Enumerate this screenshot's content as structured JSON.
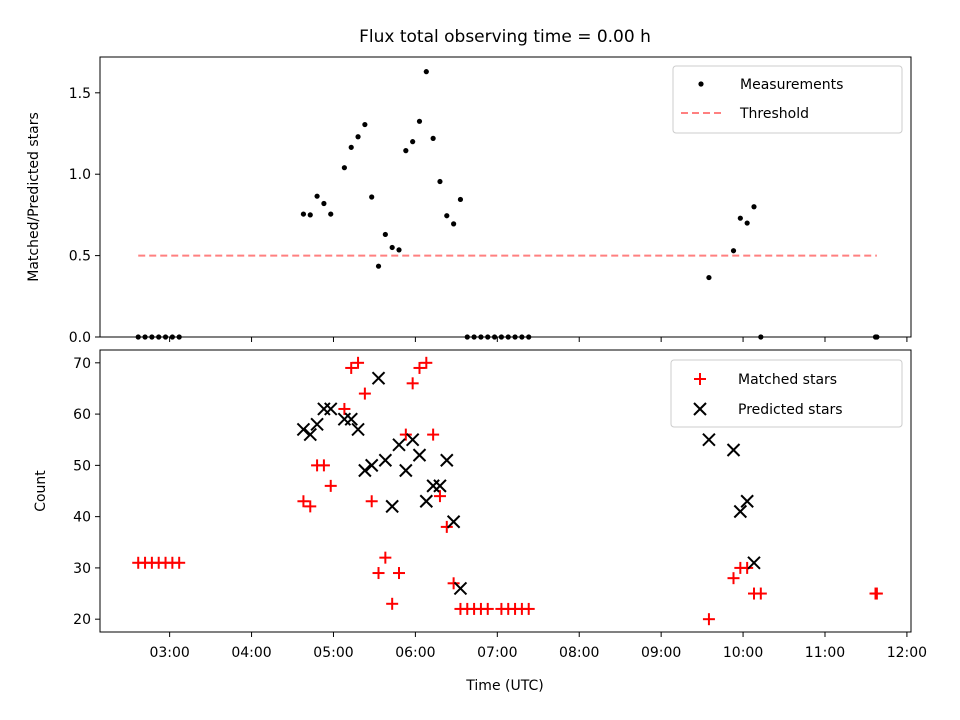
{
  "chart_data": [
    {
      "type": "scatter",
      "title": "Flux total observing time = 0.00 h",
      "ylabel": "Matched/Predicted stars",
      "xlabel": "",
      "xlim": [
        "02:09",
        "12:03"
      ],
      "ylim": [
        0,
        1.72
      ],
      "yticks": [
        0,
        0.5,
        1.0,
        1.5
      ],
      "ytick_labels": [
        "0.0",
        "0.5",
        "1.0",
        "1.5"
      ],
      "legend_position": "upper-right",
      "series": [
        {
          "name": "Measurements",
          "kind": "points",
          "color": "#000000",
          "points": [
            [
              "02:37",
              0
            ],
            [
              "02:42",
              0
            ],
            [
              "02:47",
              0
            ],
            [
              "02:52",
              0
            ],
            [
              "02:57",
              0
            ],
            [
              "03:02",
              0
            ],
            [
              "03:07",
              0
            ],
            [
              "04:38",
              0.755
            ],
            [
              "04:43",
              0.75
            ],
            [
              "04:48",
              0.865
            ],
            [
              "04:53",
              0.82
            ],
            [
              "04:58",
              0.755
            ],
            [
              "05:08",
              1.04
            ],
            [
              "05:13",
              1.165
            ],
            [
              "05:18",
              1.23
            ],
            [
              "05:23",
              1.305
            ],
            [
              "05:28",
              0.86
            ],
            [
              "05:33",
              0.435
            ],
            [
              "05:38",
              0.63
            ],
            [
              "05:43",
              0.55
            ],
            [
              "05:48",
              0.535
            ],
            [
              "05:53",
              1.145
            ],
            [
              "05:58",
              1.2
            ],
            [
              "06:03",
              1.325
            ],
            [
              "06:08",
              1.63
            ],
            [
              "06:13",
              1.22
            ],
            [
              "06:18",
              0.955
            ],
            [
              "06:23",
              0.745
            ],
            [
              "06:28",
              0.695
            ],
            [
              "06:33",
              0.845
            ],
            [
              "06:38",
              0
            ],
            [
              "06:43",
              0
            ],
            [
              "06:48",
              0
            ],
            [
              "06:53",
              0
            ],
            [
              "06:58",
              0
            ],
            [
              "07:03",
              0
            ],
            [
              "07:08",
              0
            ],
            [
              "07:13",
              0
            ],
            [
              "07:18",
              0
            ],
            [
              "07:23",
              0
            ],
            [
              "09:35",
              0.365
            ],
            [
              "09:53",
              0.53
            ],
            [
              "09:58",
              0.73
            ],
            [
              "10:03",
              0.7
            ],
            [
              "10:08",
              0.8
            ],
            [
              "10:13",
              0
            ],
            [
              "11:37",
              0
            ],
            [
              "11:38",
              0
            ]
          ]
        },
        {
          "name": "Threshold",
          "kind": "dashed-line",
          "color": "#ff8080",
          "x": [
            "02:37",
            "11:38"
          ],
          "y": [
            0.5,
            0.5
          ]
        }
      ]
    },
    {
      "type": "scatter",
      "title": "",
      "ylabel": "Count",
      "xlabel": "Time (UTC)",
      "xlim": [
        "02:09",
        "12:03"
      ],
      "ylim": [
        17.5,
        72.5
      ],
      "yticks": [
        20,
        30,
        40,
        50,
        60,
        70
      ],
      "ytick_labels": [
        "20",
        "30",
        "40",
        "50",
        "60",
        "70"
      ],
      "xticks": [
        "03:00",
        "04:00",
        "05:00",
        "06:00",
        "07:00",
        "08:00",
        "09:00",
        "10:00",
        "11:00",
        "12:00"
      ],
      "legend_position": "upper-right",
      "series": [
        {
          "name": "Matched stars",
          "marker": "plus",
          "color": "#ff0000",
          "points": [
            [
              "02:37",
              31
            ],
            [
              "02:42",
              31
            ],
            [
              "02:47",
              31
            ],
            [
              "02:52",
              31
            ],
            [
              "02:57",
              31
            ],
            [
              "03:02",
              31
            ],
            [
              "03:07",
              31
            ],
            [
              "04:38",
              43
            ],
            [
              "04:43",
              42
            ],
            [
              "04:48",
              50
            ],
            [
              "04:53",
              50
            ],
            [
              "04:58",
              46
            ],
            [
              "05:08",
              61
            ],
            [
              "05:13",
              69
            ],
            [
              "05:18",
              70
            ],
            [
              "05:23",
              64
            ],
            [
              "05:28",
              43
            ],
            [
              "05:33",
              29
            ],
            [
              "05:38",
              32
            ],
            [
              "05:43",
              23
            ],
            [
              "05:48",
              29
            ],
            [
              "05:53",
              56
            ],
            [
              "05:58",
              66
            ],
            [
              "06:03",
              69
            ],
            [
              "06:08",
              70
            ],
            [
              "06:13",
              56
            ],
            [
              "06:18",
              44
            ],
            [
              "06:23",
              38
            ],
            [
              "06:28",
              27
            ],
            [
              "06:33",
              22
            ],
            [
              "06:38",
              22
            ],
            [
              "06:43",
              22
            ],
            [
              "06:48",
              22
            ],
            [
              "06:53",
              22
            ],
            [
              "07:03",
              22
            ],
            [
              "07:08",
              22
            ],
            [
              "07:13",
              22
            ],
            [
              "07:18",
              22
            ],
            [
              "07:23",
              22
            ],
            [
              "09:35",
              20
            ],
            [
              "09:53",
              28
            ],
            [
              "09:58",
              30
            ],
            [
              "10:03",
              30
            ],
            [
              "10:08",
              25
            ],
            [
              "10:13",
              25
            ],
            [
              "11:37",
              25
            ],
            [
              "11:38",
              25
            ]
          ]
        },
        {
          "name": "Predicted stars",
          "marker": "x",
          "color": "#000000",
          "points": [
            [
              "04:38",
              57
            ],
            [
              "04:43",
              56
            ],
            [
              "04:48",
              58
            ],
            [
              "04:53",
              61
            ],
            [
              "04:58",
              61
            ],
            [
              "05:08",
              59
            ],
            [
              "05:13",
              59
            ],
            [
              "05:18",
              57
            ],
            [
              "05:23",
              49
            ],
            [
              "05:28",
              50
            ],
            [
              "05:33",
              67
            ],
            [
              "05:38",
              51
            ],
            [
              "05:43",
              42
            ],
            [
              "05:48",
              54
            ],
            [
              "05:53",
              49
            ],
            [
              "05:58",
              55
            ],
            [
              "06:03",
              52
            ],
            [
              "06:08",
              43
            ],
            [
              "06:13",
              46
            ],
            [
              "06:18",
              46
            ],
            [
              "06:23",
              51
            ],
            [
              "06:28",
              39
            ],
            [
              "06:33",
              26
            ],
            [
              "09:35",
              55
            ],
            [
              "09:53",
              53
            ],
            [
              "09:58",
              41
            ],
            [
              "10:03",
              43
            ],
            [
              "10:08",
              31
            ]
          ]
        }
      ]
    }
  ]
}
